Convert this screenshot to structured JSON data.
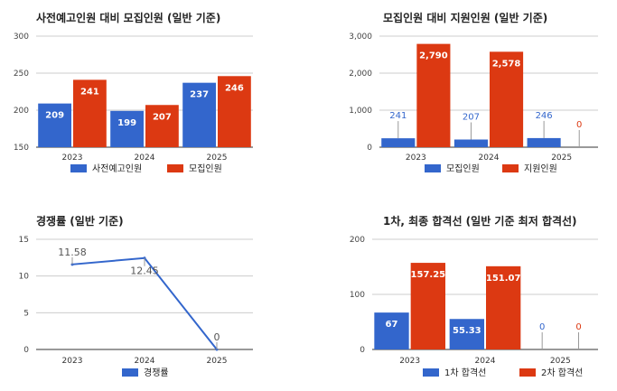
{
  "colors": {
    "blue": "#3366cc",
    "red": "#dc3912",
    "grid": "#cccccc",
    "axis": "#333333"
  },
  "chart_data": [
    {
      "type": "bar",
      "title": "사전예고인원 대비 모집인원 (일반 기준)",
      "categories": [
        "2023",
        "2024",
        "2025"
      ],
      "y_ticks": [
        "150",
        "200",
        "250",
        "300"
      ],
      "ylim": [
        150,
        300
      ],
      "label_position": "inside",
      "series": [
        {
          "name": "사전예고인원",
          "color": "#3366cc",
          "values": [
            209,
            199,
            237
          ],
          "labels": [
            "209",
            "199",
            "237"
          ]
        },
        {
          "name": "모집인원",
          "color": "#dc3912",
          "values": [
            241,
            207,
            246
          ],
          "labels": [
            "241",
            "207",
            "246"
          ]
        }
      ],
      "legend": "bottom"
    },
    {
      "type": "bar",
      "title": "모집인원 대비 지원인원 (일반 기준)",
      "categories": [
        "2023",
        "2024",
        "2025"
      ],
      "y_ticks": [
        "0",
        "1,000",
        "2,000",
        "3,000"
      ],
      "ylim": [
        0,
        3000
      ],
      "label_position": "mixed",
      "series": [
        {
          "name": "모집인원",
          "color": "#3366cc",
          "values": [
            241,
            207,
            246
          ],
          "labels": [
            "241",
            "207",
            "246"
          ]
        },
        {
          "name": "지원인원",
          "color": "#dc3912",
          "values": [
            2790,
            2578,
            0
          ],
          "labels": [
            "2,790",
            "2,578",
            "0"
          ]
        }
      ],
      "legend": "bottom"
    },
    {
      "type": "line",
      "title": "경쟁률 (일반 기준)",
      "categories": [
        "2023",
        "2024",
        "2025"
      ],
      "y_ticks": [
        "0",
        "5",
        "10",
        "15"
      ],
      "ylim": [
        0,
        15
      ],
      "series": [
        {
          "name": "경쟁률",
          "color": "#3366cc",
          "values": [
            11.58,
            12.45,
            0
          ],
          "labels": [
            "11.58",
            "12.45",
            "0"
          ]
        }
      ],
      "legend": "bottom"
    },
    {
      "type": "bar",
      "title": "1차, 최종 합격선 (일반 기준 최저 합격선)",
      "categories": [
        "2023",
        "2024",
        "2025"
      ],
      "y_ticks": [
        "0",
        "100",
        "200"
      ],
      "ylim": [
        0,
        200
      ],
      "label_position": "inside",
      "series": [
        {
          "name": "1차 합격선",
          "color": "#3366cc",
          "values": [
            67,
            55.33,
            0
          ],
          "labels": [
            "67",
            "55.33",
            "0"
          ]
        },
        {
          "name": "2차 합격선",
          "color": "#dc3912",
          "values": [
            157.25,
            151.07,
            0
          ],
          "labels": [
            "157.25",
            "151.07",
            "0"
          ]
        }
      ],
      "legend": "bottom"
    }
  ]
}
